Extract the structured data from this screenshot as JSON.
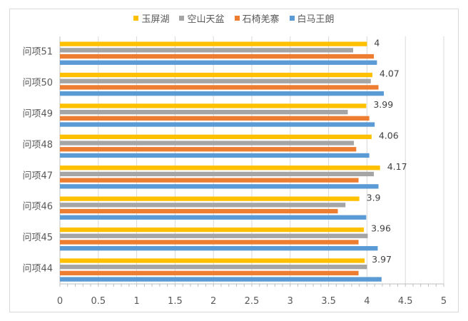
{
  "chart_data": {
    "type": "bar",
    "orientation": "horizontal",
    "categories": [
      "问项51",
      "问项50",
      "问项49",
      "问项48",
      "问项47",
      "问项46",
      "问项45",
      "问项44"
    ],
    "series": [
      {
        "name": "玉屏湖",
        "color": "#FFC000",
        "values": [
          4.0,
          4.07,
          3.99,
          4.06,
          4.17,
          3.9,
          3.96,
          3.97
        ]
      },
      {
        "name": "空山天盆",
        "color": "#A5A5A5",
        "values": [
          3.82,
          4.05,
          3.75,
          3.83,
          4.09,
          3.72,
          4.01,
          4.0
        ]
      },
      {
        "name": "石椅羌寨",
        "color": "#ED7D31",
        "values": [
          4.09,
          4.15,
          4.03,
          3.86,
          3.89,
          3.62,
          3.89,
          3.89
        ]
      },
      {
        "name": "白马王朗",
        "color": "#5B9BD5",
        "values": [
          4.13,
          4.22,
          4.1,
          4.03,
          4.15,
          3.99,
          4.14,
          4.19
        ]
      }
    ],
    "data_labels": {
      "series": "玉屏湖",
      "values": [
        "4",
        "4.07",
        "3.99",
        "4.06",
        "4.17",
        "3.9",
        "3.96",
        "3.97"
      ]
    },
    "xlim": [
      0,
      5
    ],
    "x_ticks": [
      "0",
      "0.5",
      "1",
      "1.5",
      "2",
      "2.5",
      "3",
      "3.5",
      "4",
      "4.5",
      "5"
    ],
    "grid": true,
    "legend": "top-center"
  }
}
